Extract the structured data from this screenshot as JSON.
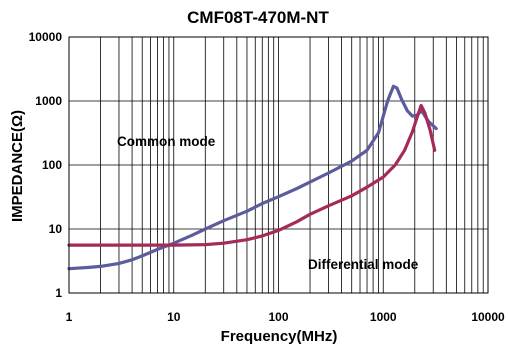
{
  "chart_data": {
    "type": "line",
    "title": "CMF08T-470M-NT",
    "xlabel": "Frequency(MHz)",
    "ylabel": "IMPEDANCE(Ω)",
    "xscale": "log",
    "yscale": "log",
    "xlim": [
      1,
      10000
    ],
    "ylim": [
      1,
      10000
    ],
    "grid": true,
    "x_ticks": [
      "1",
      "10",
      "100",
      "1000",
      "10000"
    ],
    "y_ticks": [
      "1",
      "10",
      "100",
      "1000",
      "10000"
    ],
    "annotations": [
      "Common mode",
      "Differential mode"
    ],
    "series": [
      {
        "color": "#5c5c9c",
        "points": [
          [
            1,
            2.4
          ],
          [
            1.5,
            2.5
          ],
          [
            2,
            2.6
          ],
          [
            3,
            2.9
          ],
          [
            4,
            3.3
          ],
          [
            5,
            3.8
          ],
          [
            7,
            4.8
          ],
          [
            10,
            6.0
          ],
          [
            15,
            8.0
          ],
          [
            20,
            10.0
          ],
          [
            30,
            13.5
          ],
          [
            50,
            19
          ],
          [
            70,
            25
          ],
          [
            100,
            32
          ],
          [
            150,
            43
          ],
          [
            200,
            54
          ],
          [
            300,
            75
          ],
          [
            500,
            115
          ],
          [
            700,
            170
          ],
          [
            900,
            320
          ],
          [
            1100,
            1000
          ],
          [
            1250,
            1700
          ],
          [
            1350,
            1600
          ],
          [
            1500,
            1050
          ],
          [
            1700,
            700
          ],
          [
            1900,
            580
          ],
          [
            2100,
            600
          ],
          [
            2300,
            700
          ],
          [
            2400,
            650
          ],
          [
            2700,
            480
          ],
          [
            3200,
            370
          ]
        ]
      },
      {
        "color": "#a52a5a",
        "points": [
          [
            1,
            5.6
          ],
          [
            2,
            5.6
          ],
          [
            5,
            5.6
          ],
          [
            10,
            5.6
          ],
          [
            20,
            5.7
          ],
          [
            30,
            6.0
          ],
          [
            50,
            6.8
          ],
          [
            70,
            7.8
          ],
          [
            100,
            9.5
          ],
          [
            150,
            13
          ],
          [
            200,
            17
          ],
          [
            300,
            23
          ],
          [
            500,
            33
          ],
          [
            700,
            45
          ],
          [
            1000,
            65
          ],
          [
            1300,
            100
          ],
          [
            1600,
            170
          ],
          [
            1900,
            330
          ],
          [
            2100,
            550
          ],
          [
            2300,
            850
          ],
          [
            2500,
            650
          ],
          [
            2800,
            350
          ],
          [
            3100,
            170
          ]
        ]
      }
    ]
  }
}
